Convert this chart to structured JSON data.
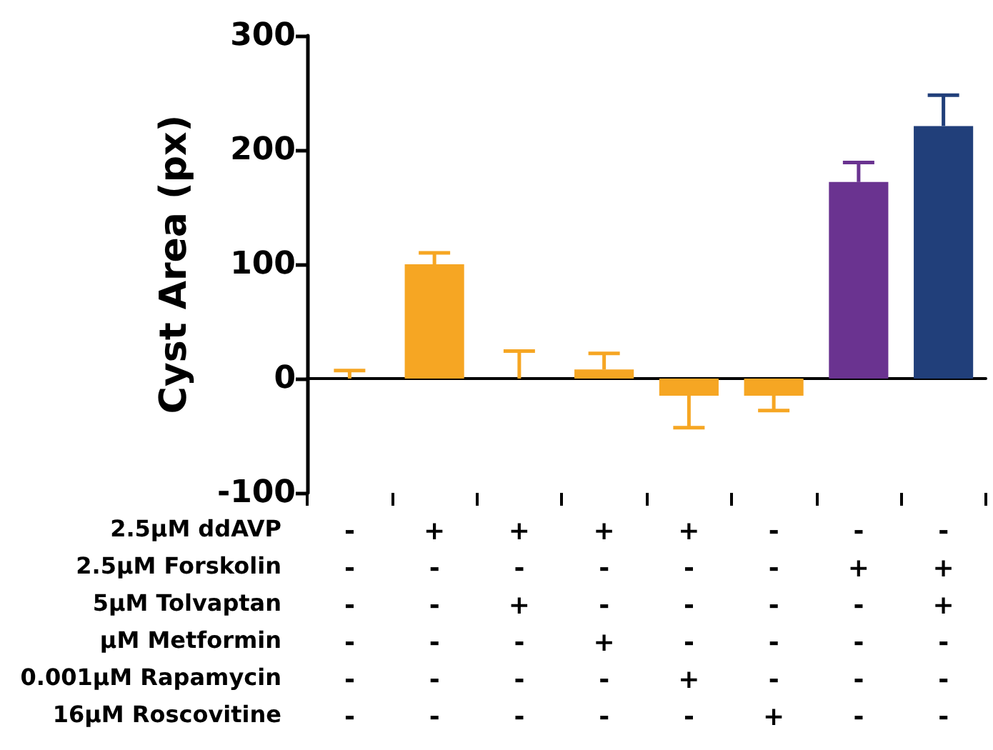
{
  "chart_data": {
    "type": "bar",
    "ylabel": "Cyst Area (px)",
    "categories": [
      "-\n-\n-\n-\n-\n-",
      "+\n-\n-\n-\n-\n-",
      "+\n-\n+\n-\n-\n-",
      "+\n-\n-\n+\n-\n-",
      "+\n-\n-\n-\n+\n-",
      "-\n-\n-\n-\n-\n+",
      "-\n+\n-\n-\n-\n-",
      "-\n+\n+\n-\n-\n-"
    ],
    "values": [
      0,
      100,
      0,
      8,
      -15,
      -15,
      172,
      221
    ],
    "errors": [
      7,
      10,
      24,
      14,
      28,
      13,
      17,
      27
    ],
    "colors": [
      "#f6a623",
      "#f6a623",
      "#f6a623",
      "#f6a623",
      "#f6a623",
      "#f6a623",
      "#6a3390",
      "#213f7a"
    ],
    "ylim": [
      -100,
      300
    ],
    "yticks": [
      -100,
      0,
      100,
      200,
      300
    ],
    "annotations": [
      "2.5µM ddAVP",
      "2.5µM Forskolin",
      "5µM Tolvaptan",
      "µM Metformin",
      "0.001µM Rapamycin",
      "16µM Roscovitine"
    ]
  }
}
